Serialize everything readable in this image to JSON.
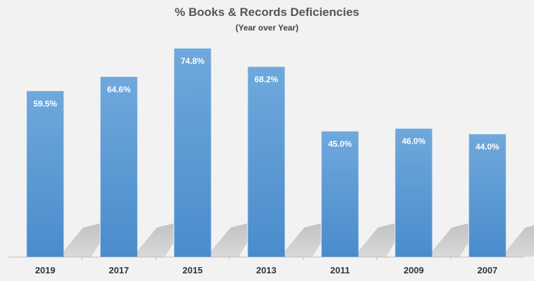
{
  "chart_data": {
    "type": "bar",
    "title": "% Books & Records Deficiencies",
    "subtitle": "(Year over Year)",
    "categories": [
      "2019",
      "2017",
      "2015",
      "2013",
      "2011",
      "2009",
      "2007"
    ],
    "values": [
      59.5,
      64.6,
      74.8,
      68.2,
      45.0,
      46.0,
      44.0
    ],
    "data_labels": [
      "59.5%",
      "64.6%",
      "74.8%",
      "68.2%",
      "45.0%",
      "46.0%",
      "44.0%"
    ],
    "xlabel": "",
    "ylabel": "",
    "ylim": [
      0,
      80
    ],
    "grid": false,
    "legend": "none",
    "colors": {
      "bar_top": "#6fa8dc",
      "bar_bottom": "#4a8ccc",
      "background": "#f2f2f2",
      "label": "#ffffff",
      "axis": "#bfbfbf",
      "tick_text": "#333333"
    }
  }
}
